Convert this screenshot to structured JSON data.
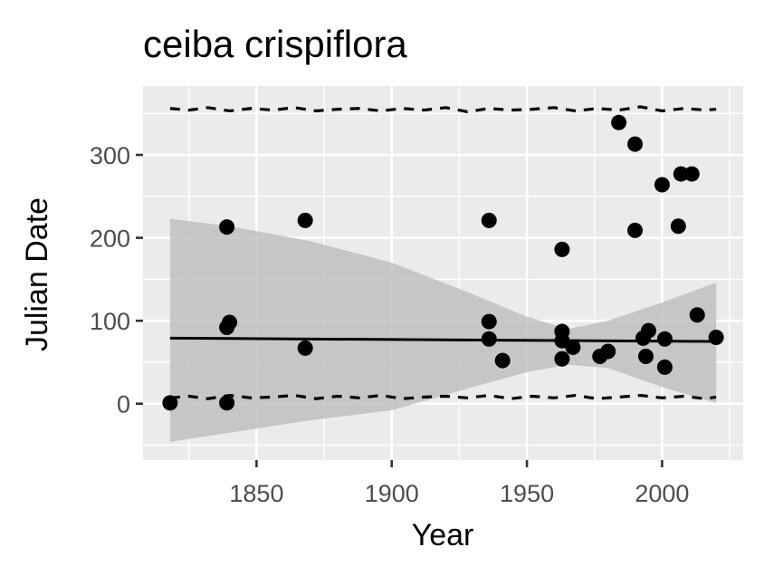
{
  "chart_data": {
    "type": "scatter",
    "title": "ceiba crispiflora",
    "xlabel": "Year",
    "ylabel": "Julian Date",
    "xlim": [
      1808,
      2030
    ],
    "ylim": [
      -68,
      383
    ],
    "xticks": [
      1850,
      1900,
      1950,
      2000
    ],
    "yticks": [
      0,
      100,
      200,
      300
    ],
    "grid": true,
    "legend": "none",
    "colors": {
      "panel": "#ebebeb",
      "grid": "#ffffff",
      "points": "#000000",
      "band": "#bdbdbd",
      "tick_text": "#4d4d4d"
    },
    "points": [
      {
        "x": 1818,
        "y": 1
      },
      {
        "x": 1839,
        "y": 213
      },
      {
        "x": 1839,
        "y": 92
      },
      {
        "x": 1840,
        "y": 98
      },
      {
        "x": 1839,
        "y": 1
      },
      {
        "x": 1868,
        "y": 221
      },
      {
        "x": 1868,
        "y": 67
      },
      {
        "x": 1936,
        "y": 221
      },
      {
        "x": 1936,
        "y": 99
      },
      {
        "x": 1936,
        "y": 78
      },
      {
        "x": 1941,
        "y": 52
      },
      {
        "x": 1963,
        "y": 186
      },
      {
        "x": 1963,
        "y": 87
      },
      {
        "x": 1963,
        "y": 76
      },
      {
        "x": 1963,
        "y": 54
      },
      {
        "x": 1967,
        "y": 68
      },
      {
        "x": 1977,
        "y": 57
      },
      {
        "x": 1980,
        "y": 63
      },
      {
        "x": 1984,
        "y": 339
      },
      {
        "x": 1990,
        "y": 313
      },
      {
        "x": 1990,
        "y": 209
      },
      {
        "x": 1993,
        "y": 79
      },
      {
        "x": 1994,
        "y": 57
      },
      {
        "x": 1995,
        "y": 88
      },
      {
        "x": 2000,
        "y": 264
      },
      {
        "x": 2001,
        "y": 78
      },
      {
        "x": 2001,
        "y": 44
      },
      {
        "x": 2006,
        "y": 214
      },
      {
        "x": 2007,
        "y": 277
      },
      {
        "x": 2011,
        "y": 277
      },
      {
        "x": 2013,
        "y": 107
      },
      {
        "x": 2020,
        "y": 80
      }
    ],
    "trend_line": {
      "x": [
        1818,
        2020
      ],
      "y": [
        79,
        75
      ]
    },
    "confidence_band": {
      "x": [
        1818,
        1840,
        1870,
        1900,
        1930,
        1950,
        1965,
        1980,
        2000,
        2020
      ],
      "upper": [
        223,
        214,
        196,
        170,
        132,
        105,
        90,
        100,
        122,
        146
      ],
      "lower": [
        -46,
        -35,
        -20,
        -8,
        20,
        38,
        47,
        43,
        20,
        1
      ]
    },
    "quantile_lines": {
      "x": [
        1818,
        1825,
        1832,
        1840,
        1848,
        1856,
        1864,
        1872,
        1880,
        1888,
        1896,
        1904,
        1912,
        1920,
        1928,
        1936,
        1944,
        1952,
        1960,
        1968,
        1976,
        1984,
        1992,
        2000,
        2008,
        2016,
        2020
      ],
      "upper": [
        356,
        354,
        357,
        353,
        356,
        354,
        357,
        353,
        355,
        356,
        353,
        356,
        354,
        357,
        352,
        356,
        354,
        355,
        357,
        353,
        356,
        354,
        358,
        353,
        356,
        354,
        355
      ],
      "lower": [
        7,
        9,
        6,
        10,
        7,
        8,
        10,
        6,
        9,
        7,
        10,
        6,
        8,
        9,
        7,
        10,
        6,
        9,
        7,
        10,
        6,
        8,
        10,
        7,
        9,
        6,
        8
      ]
    }
  }
}
